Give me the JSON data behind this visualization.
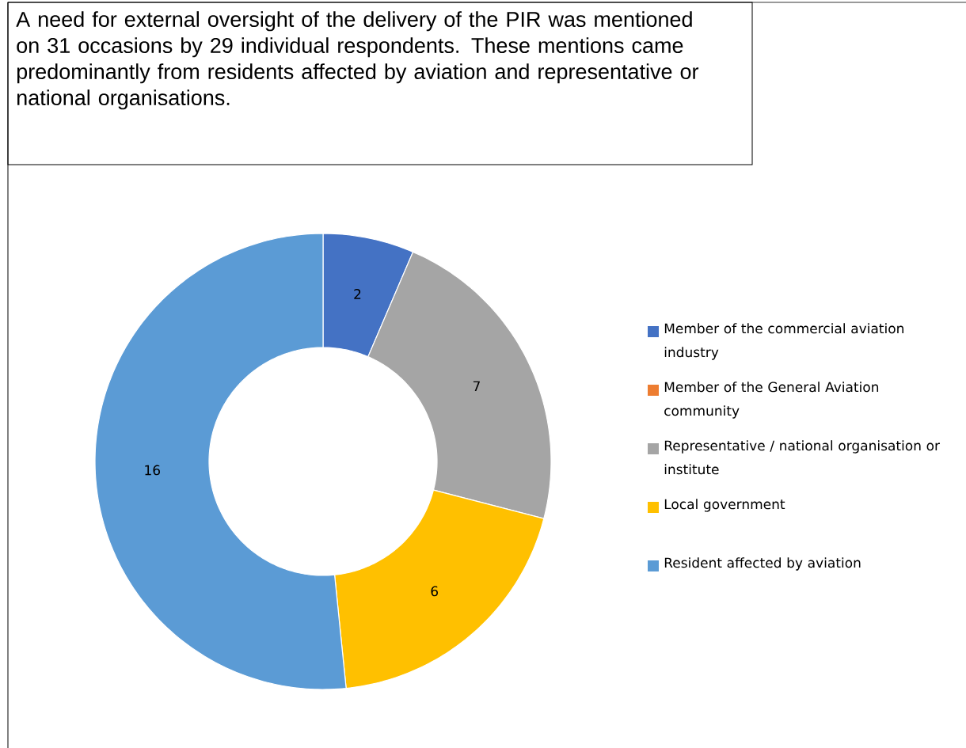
{
  "chart_data": {
    "type": "donut",
    "title": "A need for external oversight of the delivery of the PIR was mentioned on 31 occasions by 29 individual respondents. These mentions came predominantly from residents affected by aviation and representative or national organisations.",
    "categories": [
      "Member of the commercial aviation industry",
      "Member of the General Aviation community",
      "Representative / national organisation or institute",
      "Local government",
      "Resident affected by aviation"
    ],
    "values": [
      2,
      0,
      7,
      6,
      16
    ],
    "colors": [
      "#4472c4",
      "#ed7d31",
      "#a5a5a5",
      "#ffc000",
      "#5b9bd5"
    ],
    "value_labels": [
      "2",
      null,
      "7",
      "6",
      "16"
    ],
    "legend": "right"
  }
}
